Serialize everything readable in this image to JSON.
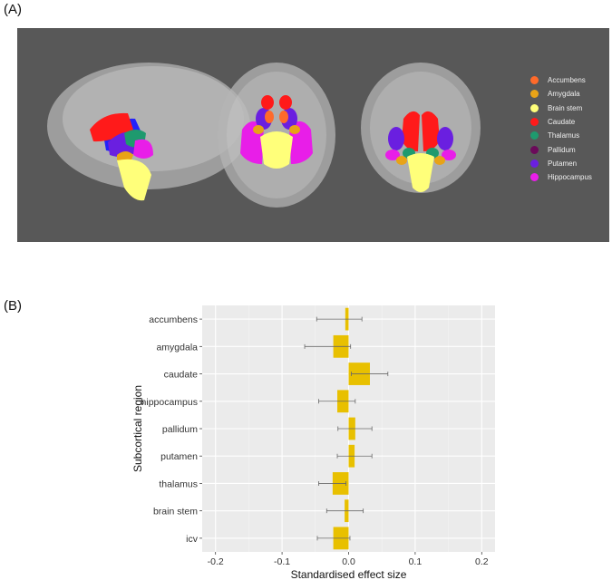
{
  "panel_a_label": "(A)",
  "panel_b_label": "(B)",
  "brain_legend": [
    {
      "label": "Accumbens",
      "color": "#ff6a2a"
    },
    {
      "label": "Amygdala",
      "color": "#e8a317"
    },
    {
      "label": "Brain stem",
      "color": "#ffff7a"
    },
    {
      "label": "Caudate",
      "color": "#ff1a1a"
    },
    {
      "label": "Thalamus",
      "color": "#1e9a6e"
    },
    {
      "label": "Pallidum",
      "color": "#6b0a5a"
    },
    {
      "label": "Putamen",
      "color": "#6a1fe0"
    },
    {
      "label": "Hippocampus",
      "color": "#e81ee8"
    }
  ],
  "chart_data": {
    "type": "bar",
    "orientation": "horizontal",
    "xlabel": "Standardised effect size",
    "ylabel": "Subcortical region",
    "xlim": [
      -0.22,
      0.22
    ],
    "xticks": [
      -0.2,
      -0.1,
      0.0,
      0.1,
      0.2
    ],
    "xtick_labels": [
      "-0.2",
      "-0.1",
      "0.0",
      "0.1",
      "0.2"
    ],
    "categories": [
      "accumbens",
      "amygdala",
      "caudate",
      "hippocampus",
      "pallidum",
      "putamen",
      "thalamus",
      "brain stem",
      "icv"
    ],
    "values": [
      -0.005,
      -0.023,
      0.032,
      -0.017,
      0.01,
      0.009,
      -0.024,
      -0.006,
      -0.023
    ],
    "error_low": [
      -0.048,
      -0.066,
      0.004,
      -0.045,
      -0.016,
      -0.017,
      -0.045,
      -0.033,
      -0.047
    ],
    "error_high": [
      0.02,
      0.003,
      0.059,
      0.01,
      0.035,
      0.035,
      -0.004,
      0.022,
      0.002
    ],
    "bar_color": "#e8c000",
    "grid": true,
    "background": "#ebebeb"
  }
}
